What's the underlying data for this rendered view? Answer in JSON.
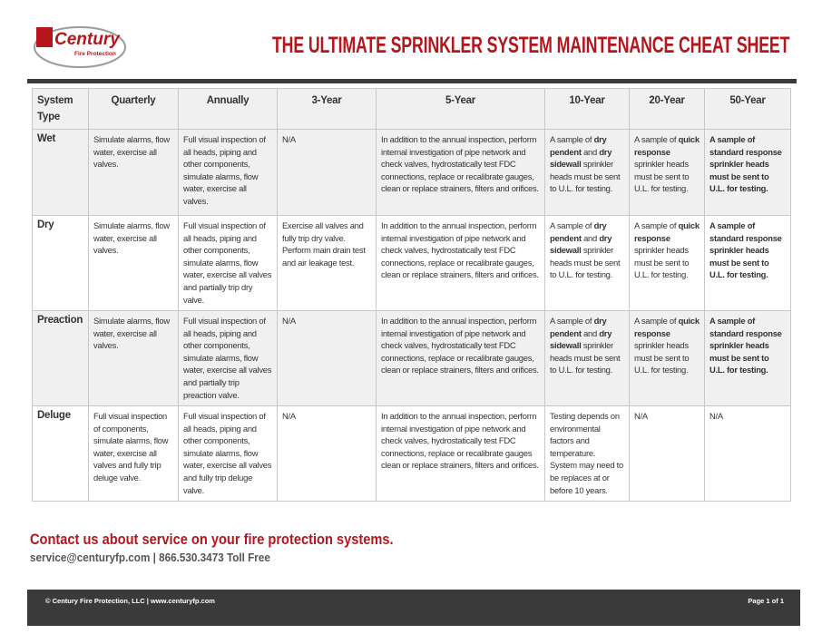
{
  "logo": {
    "name": "Century",
    "tagline": "Fire Protection"
  },
  "header": {
    "title": "THE ULTIMATE SPRINKLER SYSTEM MAINTENANCE CHEAT SHEET"
  },
  "table": {
    "columns": [
      "System Type",
      "Quarterly",
      "Annually",
      "3-Year",
      "5-Year",
      "10-Year",
      "20-Year",
      "50-Year"
    ],
    "rows": [
      {
        "type": "Wet",
        "shaded": true,
        "cells": [
          [
            {
              "text": "Simulate alarms, flow water, exercise all valves."
            }
          ],
          [
            {
              "text": "Full visual inspection of all heads, piping and other components, simulate alarms, flow water, exercise all valves."
            }
          ],
          [
            {
              "text": "N/A"
            }
          ],
          [
            {
              "text": "In addition to the annual inspection, perform internal investigation of pipe network and check valves, hydrostatically test FDC connections, replace or recalibrate gauges, clean or replace strainers, filters and orifices."
            }
          ],
          [
            {
              "text": "A sample of "
            },
            {
              "text": "dry pendent",
              "bold": true
            },
            {
              "text": " and "
            },
            {
              "text": "dry sidewall",
              "bold": true
            },
            {
              "text": " sprinkler heads must be sent to U.L. for testing."
            }
          ],
          [
            {
              "text": "A sample of "
            },
            {
              "text": "quick response",
              "bold": true
            },
            {
              "text": " sprinkler heads must be sent to U.L. for testing."
            }
          ],
          [
            {
              "text": "A sample of standard response sprinkler heads must be sent to U.L. for testing.",
              "bold": true
            }
          ]
        ]
      },
      {
        "type": "Dry",
        "shaded": false,
        "cells": [
          [
            {
              "text": "Simulate alarms, flow water, exercise all valves."
            }
          ],
          [
            {
              "text": "Full visual inspection of all heads, piping and other components, simulate alarms, flow water, exercise all valves and partially trip dry valve."
            }
          ],
          [
            {
              "text": "Exercise all valves and fully trip dry valve. Perform main drain test and air leakage test."
            }
          ],
          [
            {
              "text": "In addition to the annual inspection, perform internal investigation of pipe network and check valves, hydrostatically test FDC connections, replace or recalibrate gauges, clean or replace strainers, filters and orifices."
            }
          ],
          [
            {
              "text": "A sample of "
            },
            {
              "text": "dry pendent",
              "bold": true
            },
            {
              "text": " and "
            },
            {
              "text": "dry sidewall",
              "bold": true
            },
            {
              "text": " sprinkler heads must be sent to U.L. for testing."
            }
          ],
          [
            {
              "text": "A sample of "
            },
            {
              "text": "quick response",
              "bold": true
            },
            {
              "text": " sprinkler heads must be sent to U.L. for testing."
            }
          ],
          [
            {
              "text": "A sample of standard response sprinkler heads must be sent to U.L. for testing.",
              "bold": true
            }
          ]
        ]
      },
      {
        "type": "Preaction",
        "shaded": true,
        "cells": [
          [
            {
              "text": "Simulate alarms, flow water, exercise all valves."
            }
          ],
          [
            {
              "text": "Full visual inspection of all heads, piping and other components, simulate alarms, flow water, exercise all valves and partially trip preaction valve."
            }
          ],
          [
            {
              "text": "N/A"
            }
          ],
          [
            {
              "text": "In addition to the annual inspection, perform internal investigation of pipe network and check valves, hydrostatically test FDC connections, replace or recalibrate gauges, clean or replace strainers, filters and orifices."
            }
          ],
          [
            {
              "text": "A sample of "
            },
            {
              "text": "dry pendent",
              "bold": true
            },
            {
              "text": " and "
            },
            {
              "text": "dry sidewall",
              "bold": true
            },
            {
              "text": " sprinkler heads must be sent to U.L. for testing."
            }
          ],
          [
            {
              "text": "A sample of "
            },
            {
              "text": "quick response",
              "bold": true
            },
            {
              "text": " sprinkler heads must be sent to U.L. for testing."
            }
          ],
          [
            {
              "text": "A sample of standard response sprinkler heads must be sent to U.L. for testing.",
              "bold": true
            }
          ]
        ]
      },
      {
        "type": "Deluge",
        "shaded": false,
        "cells": [
          [
            {
              "text": "Full visual inspection of components, simulate alarms, flow water, exercise all valves and fully trip deluge valve."
            }
          ],
          [
            {
              "text": "Full visual inspection of all heads, piping and other components, simulate alarms, flow water, exercise all valves and fully trip deluge valve."
            }
          ],
          [
            {
              "text": "N/A"
            }
          ],
          [
            {
              "text": "In addition to the annual inspection, perform internal investigation of pipe network and check valves, hydrostatically test FDC connections, replace or recalibrate gauges clean or replace strainers, filters and orifices."
            }
          ],
          [
            {
              "text": "Testing depends on environmental factors and temperature. System may need to be replaces at or before 10 years."
            }
          ],
          [
            {
              "text": "N/A"
            }
          ],
          [
            {
              "text": "N/A"
            }
          ]
        ]
      }
    ]
  },
  "contact": {
    "heading": "Contact us about service on your fire protection systems.",
    "details": "service@centuryfp.com | 866.530.3473 Toll Free"
  },
  "footer": {
    "copyright": "© Century Fire Protection, LLC | www.centuryfp.com",
    "page": "Page 1 of 1"
  }
}
